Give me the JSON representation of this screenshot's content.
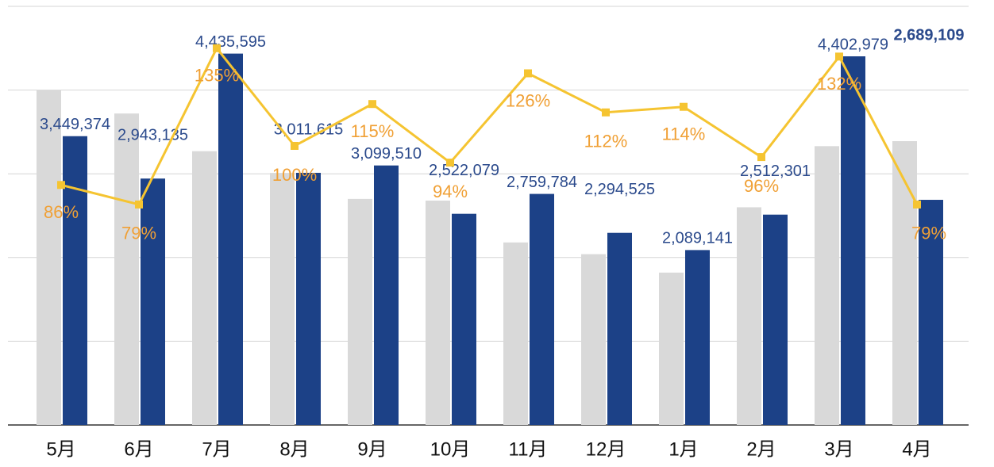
{
  "chart_data": {
    "type": "bar-line",
    "categories": [
      "5月",
      "6月",
      "7月",
      "8月",
      "9月",
      "10月",
      "11月",
      "12月",
      "1月",
      "2月",
      "3月",
      "4月"
    ],
    "series": [
      {
        "color": "#d9d9d9",
        "values": [
          4000000,
          3720000,
          3270000,
          3010000,
          2700000,
          2680000,
          2180000,
          2040000,
          1820000,
          2600000,
          3330000,
          3390000
        ]
      },
      {
        "color": "#1c4187",
        "values": [
          3449374,
          2943135,
          4435595,
          3011615,
          3099510,
          2522079,
          2759784,
          2294525,
          2089141,
          2512301,
          4402979,
          2689109
        ],
        "value_labels": [
          "3,449,374",
          "2,943,135",
          "4,435,595",
          "3,011,615",
          "3,099,510",
          "2,522,079",
          "2,759,784",
          "2,294,525",
          "2,089,141",
          "2,512,301",
          "4,402,979",
          "2,689,109"
        ]
      },
      {
        "type": "line",
        "axis": "y2",
        "color": "#f5c431",
        "values": [
          86,
          79,
          135,
          100,
          115,
          94,
          126,
          112,
          114,
          96,
          132,
          79
        ],
        "value_labels": [
          "86%",
          "79%",
          "135%",
          "100%",
          "115%",
          "94%",
          "126%",
          "112%",
          "114%",
          "96%",
          "132%",
          "79%"
        ]
      }
    ],
    "ylim": [
      0,
      5000000
    ],
    "yticks": [
      0,
      1000000,
      2000000,
      3000000,
      4000000,
      5000000
    ],
    "y2lim": [
      0,
      150
    ],
    "grid": true
  }
}
